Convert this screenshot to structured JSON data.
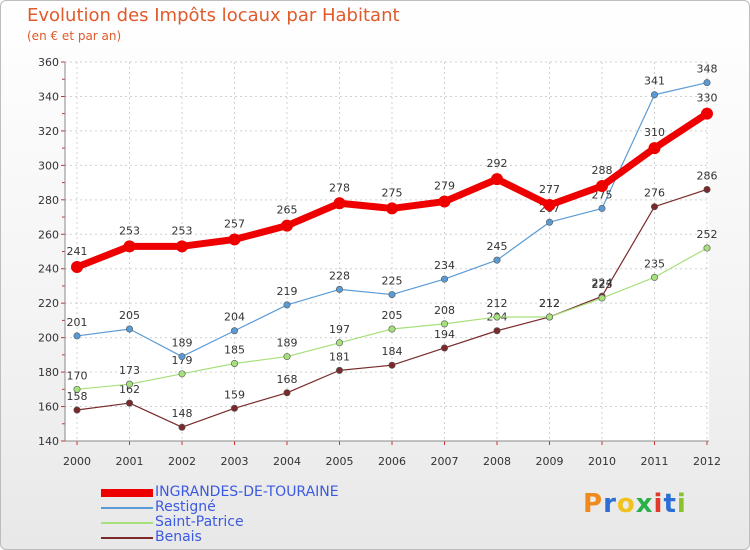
{
  "chart_data": {
    "type": "line",
    "title": "Evolution des Impôts locaux par Habitant",
    "subtitle": "(en € et par an)",
    "categories": [
      "2000",
      "2001",
      "2002",
      "2003",
      "2004",
      "2005",
      "2006",
      "2007",
      "2008",
      "2009",
      "2010",
      "2011",
      "2012"
    ],
    "ylim": [
      140,
      360
    ],
    "yticks": [
      140,
      160,
      180,
      200,
      220,
      240,
      260,
      280,
      300,
      320,
      340,
      360
    ],
    "grid": true,
    "legend_position": "bottom-left",
    "series": [
      {
        "name": "INGRANDES-DE-TOURAINE",
        "color": "#ee0000",
        "values": [
          241,
          253,
          253,
          257,
          265,
          278,
          275,
          279,
          292,
          277,
          288,
          310,
          330
        ]
      },
      {
        "name": "Restigné",
        "color": "#5b9bd5",
        "values": [
          201,
          205,
          189,
          204,
          219,
          228,
          225,
          234,
          245,
          267,
          275,
          341,
          348
        ]
      },
      {
        "name": "Saint-Patrice",
        "color": "#a6e07a",
        "values": [
          170,
          173,
          179,
          185,
          189,
          197,
          205,
          208,
          212,
          212,
          223,
          235,
          252
        ]
      },
      {
        "name": "Benais",
        "color": "#7a2a2a",
        "values": [
          158,
          162,
          148,
          159,
          168,
          181,
          184,
          194,
          204,
          212,
          224,
          276,
          286
        ]
      }
    ]
  },
  "logo": {
    "letters": [
      "P",
      "r",
      "o",
      "x",
      "i",
      "t",
      "i"
    ],
    "colors": [
      "#f08a1c",
      "#2b6fd6",
      "#f0c21c",
      "#2bb04a",
      "#e03a2b",
      "#2b6fd6",
      "#8ac22b"
    ]
  }
}
